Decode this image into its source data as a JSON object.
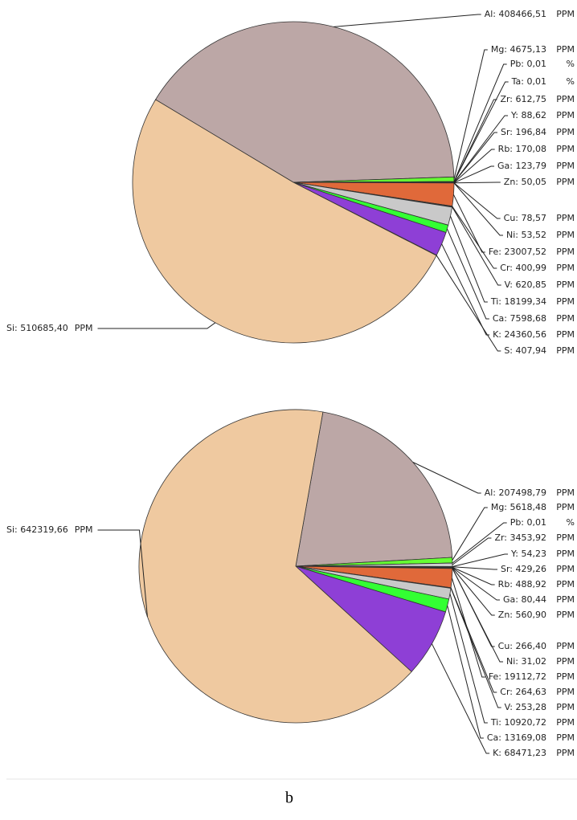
{
  "chart_data": [
    {
      "type": "pie",
      "value_labels": [
        "Al: 408466,51",
        "Mg: 4675,13",
        "Pb: 0,01",
        "Ta: 0,01",
        "Zr: 612,75",
        "Y: 88,62",
        "Sr: 196,84",
        "Rb: 170,08",
        "Ga: 123,79",
        "Zn: 50,05",
        "Cu: 78,57",
        "Ni: 53,52",
        "Fe: 23007,52",
        "Cr: 400,99",
        "V: 620,85",
        "Ti: 18199,34",
        "Ca: 7598,68",
        "K: 24360,56",
        "S: 407,94",
        "Si: 510685,40"
      ],
      "values": [
        408466.51,
        4675.13,
        0.01,
        0.01,
        612.75,
        88.62,
        196.84,
        170.08,
        123.79,
        50.05,
        78.57,
        53.52,
        23007.52,
        400.99,
        620.85,
        18199.34,
        7598.68,
        24360.56,
        407.94,
        510685.4
      ],
      "units": [
        "PPM",
        "PPM",
        "%",
        "%",
        "PPM",
        "PPM",
        "PPM",
        "PPM",
        "PPM",
        "PPM",
        "PPM",
        "PPM",
        "PPM",
        "PPM",
        "PPM",
        "PPM",
        "PPM",
        "PPM",
        "PPM",
        "PPM"
      ],
      "colors": [
        "#bca7a6",
        "#66ff33",
        "#d0d0d0",
        "#d0d0d0",
        "#d0d0d0",
        "#d0d0d0",
        "#d0d0d0",
        "#d0d0d0",
        "#d0d0d0",
        "#d0d0d0",
        "#d0d0d0",
        "#d0d0d0",
        "#e0693a",
        "#d0d0d0",
        "#d0d0d0",
        "#c9c9c9",
        "#33ff33",
        "#8e3fd6",
        "#d0d0d0",
        "#efc9a0"
      ]
    },
    {
      "type": "pie",
      "value_labels": [
        "Al: 207498,79",
        "Mg: 5618,48",
        "Pb: 0,01",
        "Zr: 3453,92",
        "Y: 54,23",
        "Sr: 429,26",
        "Rb: 488,92",
        "Ga: 80,44",
        "Zn: 560,90",
        "Cu: 266,40",
        "Ni: 31,02",
        "Fe: 19112,72",
        "Cr: 264,63",
        "V: 253,28",
        "Ti: 10920,72",
        "Ca: 13169,08",
        "K: 68471,23",
        "Si: 642319,66"
      ],
      "values": [
        207498.79,
        5618.48,
        0.01,
        3453.92,
        54.23,
        429.26,
        488.92,
        80.44,
        560.9,
        266.4,
        31.02,
        19112.72,
        264.63,
        253.28,
        10920.72,
        13169.08,
        68471.23,
        642319.66
      ],
      "units": [
        "PPM",
        "PPM",
        "%",
        "PPM",
        "PPM",
        "PPM",
        "PPM",
        "PPM",
        "PPM",
        "PPM",
        "PPM",
        "PPM",
        "PPM",
        "PPM",
        "PPM",
        "PPM",
        "PPM",
        "PPM"
      ],
      "colors": [
        "#bca7a6",
        "#66ff33",
        "#d0d0d0",
        "#d0d0d0",
        "#d0d0d0",
        "#d0d0d0",
        "#d0d0d0",
        "#d0d0d0",
        "#d0d0d0",
        "#d0d0d0",
        "#d0d0d0",
        "#e0693a",
        "#d0d0d0",
        "#d0d0d0",
        "#c9c9c9",
        "#33ff33",
        "#8e3fd6",
        "#efc9a0"
      ]
    }
  ],
  "caption": "b"
}
